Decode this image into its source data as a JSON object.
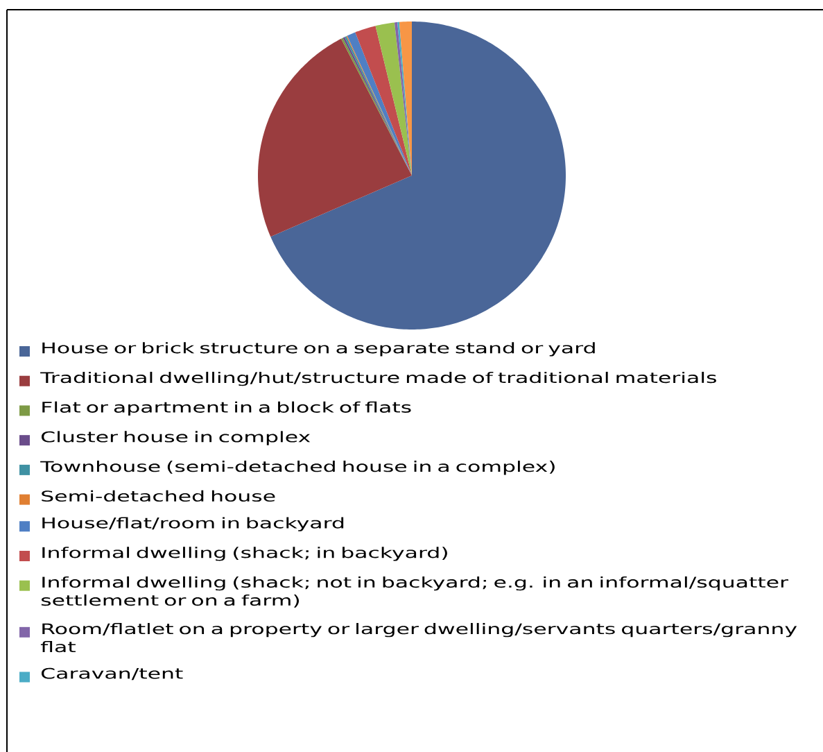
{
  "chart_data": {
    "type": "pie",
    "categories": [
      "House or brick structure on a separate stand or yard",
      "Traditional dwelling/hut/structure made of traditional materials",
      "Flat or apartment in a block of flats",
      "Cluster house in complex",
      "Townhouse (semi-detached house in a complex)",
      "Semi-detached house",
      "House/flat/room in backyard",
      "Informal dwelling (shack; in backyard)",
      "Informal dwelling (shack; not in backyard; e.g. in an informal/squatter settlement or on a farm)",
      "Room/flatlet on a property or larger dwelling/servants quarters/granny flat",
      "Caravan/tent",
      null
    ],
    "values": [
      68.5,
      23.9,
      0.2,
      0.2,
      0.2,
      0.1,
      0.9,
      2.2,
      2.0,
      0.3,
      0.2,
      1.3
    ],
    "colors": [
      "#4a6698",
      "#9a3d3f",
      "#7d9a45",
      "#6a4c8a",
      "#3f91a3",
      "#e07f32",
      "#4f7fc4",
      "#c24d4e",
      "#9ac04f",
      "#8266a9",
      "#4bacc6",
      "#f79646"
    ],
    "legend": "bottom"
  }
}
